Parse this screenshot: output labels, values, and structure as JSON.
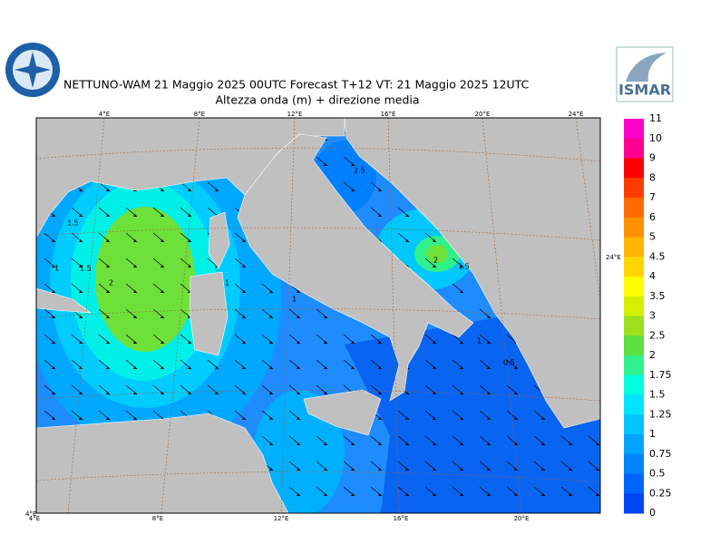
{
  "header": {
    "title": "NETTUNO-WAM  21   Maggio  2025 00UTC Forecast T+12 VT: 21   Maggio  2025 12UTC",
    "subtitle": "Altezza onda (m) + direzione media",
    "logo": "ISMAR"
  },
  "axes": {
    "top": [
      "4°E",
      "8°E",
      "12°E",
      "16°E",
      "20°E",
      "24°E"
    ],
    "bottom": [
      "4°E",
      "8°E",
      "12°E",
      "16°E",
      "20°E"
    ],
    "right": "24°E",
    "corner": "4°E"
  },
  "contour_labels": [
    "1",
    "1.5",
    "2",
    "1.5",
    "1",
    "2.5",
    "2",
    "1.5",
    "1",
    "0.5",
    "1"
  ],
  "legend": {
    "labels": [
      "11",
      "10",
      "9",
      "8",
      "7",
      "6",
      "5",
      "4.5",
      "4",
      "3.5",
      "3",
      "2.5",
      "2",
      "1.75",
      "1.5",
      "1.25",
      "1",
      "0.75",
      "0.5",
      "0.25",
      "0"
    ],
    "colors": [
      "#ff00c8",
      "#ff0090",
      "#ff0000",
      "#ff3c00",
      "#ff6a00",
      "#ff9000",
      "#ffb400",
      "#ffd400",
      "#ffff00",
      "#d4f000",
      "#9ee020",
      "#5ee040",
      "#30f08c",
      "#00ffe0",
      "#00e4ff",
      "#00c4ff",
      "#00a4ff",
      "#0084ff",
      "#0064ff",
      "#0046f0"
    ]
  }
}
